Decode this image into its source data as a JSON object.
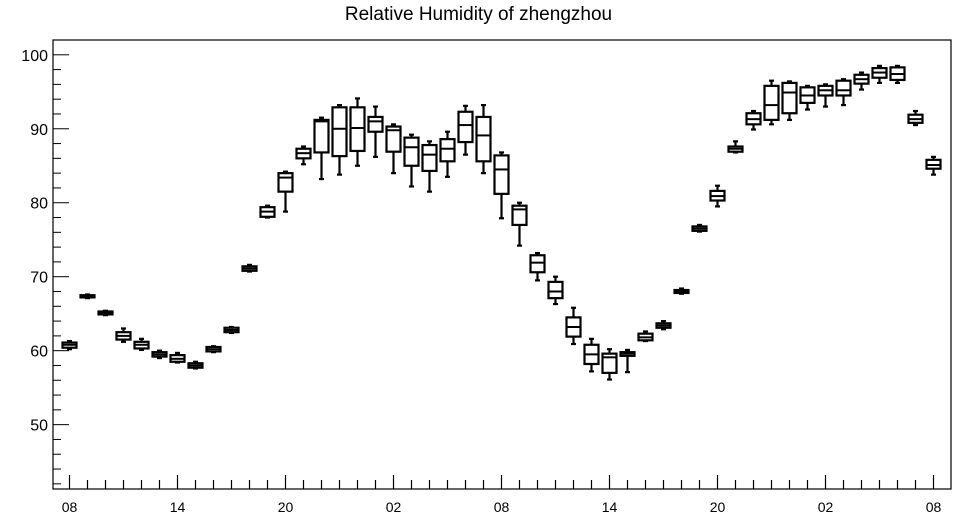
{
  "chart_data": {
    "type": "boxplot",
    "title": "Relative Humidity of zhengzhou",
    "xlabel": "",
    "ylabel": "",
    "ylim": [
      41.3,
      102
    ],
    "yticks": [
      50,
      60,
      70,
      80,
      90,
      100
    ],
    "xtick_labels": [
      "08",
      "14",
      "20",
      "02",
      "08",
      "14",
      "20",
      "02",
      "08"
    ],
    "xtick_positions": [
      0,
      6,
      12,
      18,
      24,
      30,
      36,
      42,
      48
    ],
    "grid": false,
    "legend": "none",
    "colors": {
      "box_stroke": "#000000",
      "axis": "#000000",
      "background": "#ffffff"
    },
    "boxes": [
      {
        "x": 0,
        "min": 60.2,
        "q1": 60.4,
        "median": 60.8,
        "q3": 61.1,
        "max": 61.3
      },
      {
        "x": 1,
        "min": 67.1,
        "q1": 67.2,
        "median": 67.3,
        "q3": 67.5,
        "max": 67.6
      },
      {
        "x": 2,
        "min": 64.8,
        "q1": 64.9,
        "median": 65.1,
        "q3": 65.3,
        "max": 65.4
      },
      {
        "x": 3,
        "min": 61.2,
        "q1": 61.5,
        "median": 62.0,
        "q3": 62.5,
        "max": 63.0
      },
      {
        "x": 4,
        "min": 60.1,
        "q1": 60.3,
        "median": 60.8,
        "q3": 61.2,
        "max": 61.6
      },
      {
        "x": 5,
        "min": 59.0,
        "q1": 59.2,
        "median": 59.5,
        "q3": 59.8,
        "max": 60.0
      },
      {
        "x": 6,
        "min": 58.4,
        "q1": 58.5,
        "median": 58.9,
        "q3": 59.4,
        "max": 59.7
      },
      {
        "x": 7,
        "min": 57.6,
        "q1": 57.7,
        "median": 58.0,
        "q3": 58.3,
        "max": 58.5
      },
      {
        "x": 8,
        "min": 59.8,
        "q1": 59.9,
        "median": 60.2,
        "q3": 60.5,
        "max": 60.6
      },
      {
        "x": 9,
        "min": 62.4,
        "q1": 62.5,
        "median": 62.8,
        "q3": 63.1,
        "max": 63.2
      },
      {
        "x": 10,
        "min": 70.7,
        "q1": 70.8,
        "median": 71.1,
        "q3": 71.4,
        "max": 71.6
      },
      {
        "x": 11,
        "min": 78.0,
        "q1": 78.1,
        "median": 78.8,
        "q3": 79.4,
        "max": 79.6
      },
      {
        "x": 12,
        "min": 78.8,
        "q1": 81.5,
        "median": 83.4,
        "q3": 84.0,
        "max": 84.2
      },
      {
        "x": 13,
        "min": 85.2,
        "q1": 86.0,
        "median": 86.7,
        "q3": 87.3,
        "max": 87.6
      },
      {
        "x": 14,
        "min": 83.2,
        "q1": 86.8,
        "median": 91.0,
        "q3": 91.2,
        "max": 91.5
      },
      {
        "x": 15,
        "min": 83.8,
        "q1": 86.3,
        "median": 90.0,
        "q3": 92.9,
        "max": 93.2
      },
      {
        "x": 16,
        "min": 85.0,
        "q1": 87.0,
        "median": 90.1,
        "q3": 92.9,
        "max": 94.1
      },
      {
        "x": 17,
        "min": 86.2,
        "q1": 89.6,
        "median": 91.0,
        "q3": 91.6,
        "max": 93.0
      },
      {
        "x": 18,
        "min": 84.0,
        "q1": 86.9,
        "median": 89.8,
        "q3": 90.3,
        "max": 90.6
      },
      {
        "x": 19,
        "min": 82.2,
        "q1": 85.0,
        "median": 87.5,
        "q3": 88.8,
        "max": 89.2
      },
      {
        "x": 20,
        "min": 81.5,
        "q1": 84.3,
        "median": 86.5,
        "q3": 87.8,
        "max": 88.3
      },
      {
        "x": 21,
        "min": 83.5,
        "q1": 85.6,
        "median": 87.3,
        "q3": 88.6,
        "max": 89.6
      },
      {
        "x": 22,
        "min": 86.5,
        "q1": 88.2,
        "median": 90.5,
        "q3": 92.3,
        "max": 93.1
      },
      {
        "x": 23,
        "min": 84.0,
        "q1": 85.6,
        "median": 89.1,
        "q3": 91.6,
        "max": 93.2
      },
      {
        "x": 24,
        "min": 77.9,
        "q1": 81.2,
        "median": 84.5,
        "q3": 86.4,
        "max": 86.8
      },
      {
        "x": 25,
        "min": 74.2,
        "q1": 77.0,
        "median": 79.1,
        "q3": 79.6,
        "max": 80.0
      },
      {
        "x": 26,
        "min": 69.5,
        "q1": 70.6,
        "median": 71.9,
        "q3": 72.9,
        "max": 73.2
      },
      {
        "x": 27,
        "min": 66.3,
        "q1": 67.1,
        "median": 68.0,
        "q3": 69.3,
        "max": 70.0
      },
      {
        "x": 28,
        "min": 60.9,
        "q1": 61.9,
        "median": 63.2,
        "q3": 64.5,
        "max": 65.8
      },
      {
        "x": 29,
        "min": 57.2,
        "q1": 58.2,
        "median": 59.5,
        "q3": 60.8,
        "max": 61.6
      },
      {
        "x": 30,
        "min": 56.1,
        "q1": 57.0,
        "median": 59.1,
        "q3": 59.6,
        "max": 60.2
      },
      {
        "x": 31,
        "min": 57.1,
        "q1": 59.3,
        "median": 59.6,
        "q3": 59.8,
        "max": 60.1
      },
      {
        "x": 32,
        "min": 61.3,
        "q1": 61.4,
        "median": 61.8,
        "q3": 62.3,
        "max": 62.6
      },
      {
        "x": 33,
        "min": 62.9,
        "q1": 63.1,
        "median": 63.4,
        "q3": 63.7,
        "max": 64.0
      },
      {
        "x": 34,
        "min": 67.7,
        "q1": 67.8,
        "median": 68.0,
        "q3": 68.2,
        "max": 68.4
      },
      {
        "x": 35,
        "min": 76.1,
        "q1": 76.2,
        "median": 76.5,
        "q3": 76.8,
        "max": 77.0
      },
      {
        "x": 36,
        "min": 79.5,
        "q1": 80.3,
        "median": 80.9,
        "q3": 81.6,
        "max": 82.3
      },
      {
        "x": 37,
        "min": 86.8,
        "q1": 86.9,
        "median": 87.3,
        "q3": 87.6,
        "max": 88.3
      },
      {
        "x": 38,
        "min": 89.9,
        "q1": 90.6,
        "median": 91.3,
        "q3": 92.1,
        "max": 92.4
      },
      {
        "x": 39,
        "min": 90.6,
        "q1": 91.2,
        "median": 93.2,
        "q3": 95.8,
        "max": 96.5
      },
      {
        "x": 40,
        "min": 91.2,
        "q1": 92.1,
        "median": 94.9,
        "q3": 96.2,
        "max": 96.4
      },
      {
        "x": 41,
        "min": 92.6,
        "q1": 93.5,
        "median": 94.5,
        "q3": 95.6,
        "max": 95.8
      },
      {
        "x": 42,
        "min": 93.0,
        "q1": 94.5,
        "median": 95.2,
        "q3": 95.8,
        "max": 96.0
      },
      {
        "x": 43,
        "min": 93.2,
        "q1": 94.5,
        "median": 95.2,
        "q3": 96.5,
        "max": 96.7
      },
      {
        "x": 44,
        "min": 95.3,
        "q1": 96.1,
        "median": 96.7,
        "q3": 97.3,
        "max": 97.6
      },
      {
        "x": 45,
        "min": 96.2,
        "q1": 96.9,
        "median": 97.6,
        "q3": 98.2,
        "max": 98.5
      },
      {
        "x": 46,
        "min": 96.2,
        "q1": 96.6,
        "median": 97.4,
        "q3": 98.3,
        "max": 98.5
      },
      {
        "x": 47,
        "min": 90.5,
        "q1": 90.8,
        "median": 91.3,
        "q3": 91.9,
        "max": 92.4
      },
      {
        "x": 48,
        "min": 83.8,
        "q1": 84.6,
        "median": 85.1,
        "q3": 85.8,
        "max": 86.2
      }
    ]
  }
}
